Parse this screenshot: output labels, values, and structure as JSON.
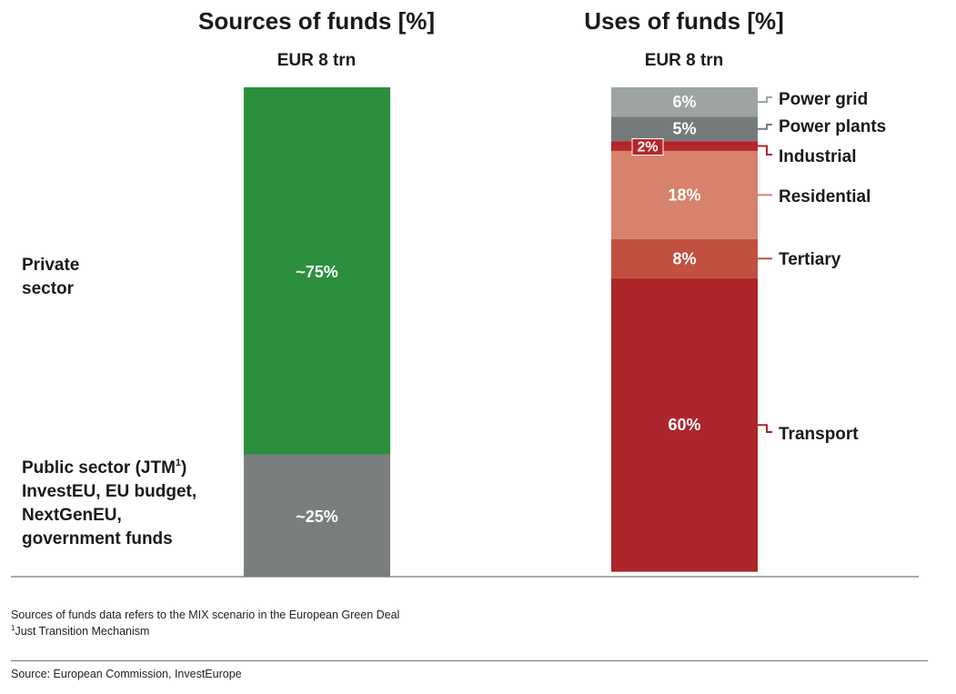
{
  "chart_data": [
    {
      "type": "bar",
      "stacked": true,
      "title": "Sources of funds [%]",
      "subtitle": "EUR 8 trn",
      "categories": [
        "Sources of funds"
      ],
      "series": [
        {
          "name": "Private sector",
          "value": 75,
          "label": "~75%",
          "color": "#2b8f3d",
          "legend_lines": [
            "Private",
            "sector"
          ]
        },
        {
          "name": "Public sector (JTM1) InvestEU, EU budget, NextGenEU, government funds",
          "value": 25,
          "label": "~25%",
          "color": "#7a7f7e",
          "legend_lines": [
            "Public sector (JTM",
            "InvestEU, EU budget,",
            "NextGenEU,",
            "government funds"
          ],
          "legend_sup": "1",
          "legend_after": ")"
        }
      ],
      "ylim": [
        0,
        100
      ]
    },
    {
      "type": "bar",
      "stacked": true,
      "title": "Uses of funds [%]",
      "subtitle": "EUR 8 trn",
      "categories": [
        "Uses of funds"
      ],
      "series": [
        {
          "name": "Power grid",
          "value": 6,
          "label": "6%",
          "color": "#9ea3a3"
        },
        {
          "name": "Power plants",
          "value": 5,
          "label": "5%",
          "color": "#757b7b"
        },
        {
          "name": "Industrial",
          "value": 2,
          "label": "2%",
          "color": "#b3262b"
        },
        {
          "name": "Residential",
          "value": 18,
          "label": "18%",
          "color": "#d7826c"
        },
        {
          "name": "Tertiary",
          "value": 8,
          "label": "8%",
          "color": "#c25040"
        },
        {
          "name": "Transport",
          "value": 60,
          "label": "60%",
          "color": "#ac262b"
        }
      ],
      "ylim": [
        0,
        100
      ]
    }
  ],
  "notes": {
    "line1": "Sources of funds data refers to the MIX scenario in the European Green Deal",
    "line2_sup": "1",
    "line2": "Just Transition Mechanism",
    "source": "Source: European Commission, InvestEurope"
  },
  "colors": {
    "axis": "#777777",
    "label_text": "#ffffff",
    "legend_text": "#1a1a1a"
  }
}
